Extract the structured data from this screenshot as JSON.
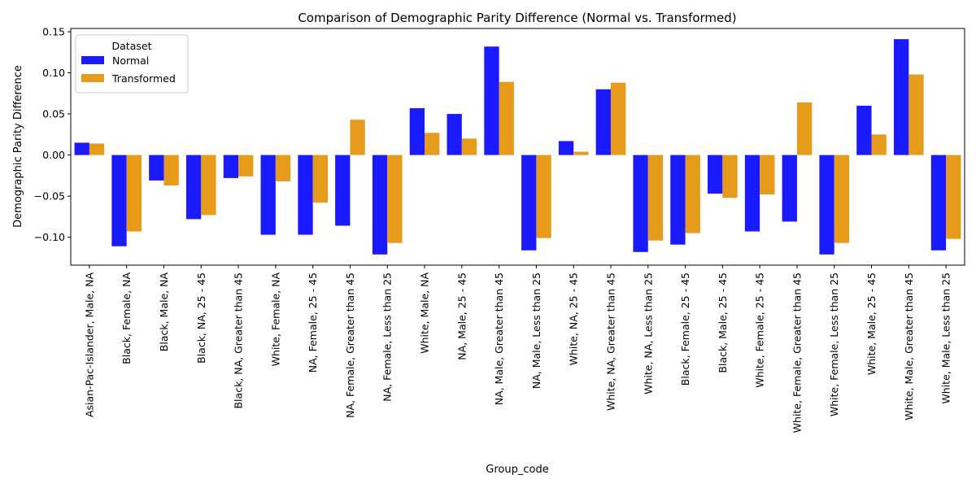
{
  "chart_data": {
    "type": "bar",
    "title": "Comparison of Demographic Parity Difference (Normal vs. Transformed)",
    "xlabel": "Group_code",
    "ylabel": "Demographic Parity Difference",
    "ylim": [
      -0.134,
      0.154
    ],
    "yticks": [
      -0.1,
      -0.05,
      0.0,
      0.05,
      0.1,
      0.15
    ],
    "ytick_labels": [
      "−0.10",
      "−0.05",
      "0.00",
      "0.05",
      "0.10",
      "0.15"
    ],
    "grid": false,
    "legend": {
      "title": "Dataset",
      "placement": "top-left"
    },
    "categories": [
      "Asian-Pac-Islander,  Male, NA",
      "Black,  Female, NA",
      "Black,  Male, NA",
      "Black, NA, 25 - 45",
      "Black, NA, Greater than 45",
      "White,  Female, NA",
      "NA,  Female, 25 - 45",
      "NA,  Female, Greater than 45",
      "NA,  Female, Less than 25",
      "White,  Male, NA",
      "NA,  Male, 25 - 45",
      "NA,  Male, Greater than 45",
      "NA,  Male, Less than 25",
      "White, NA, 25 - 45",
      "White, NA, Greater than 45",
      "White, NA, Less than 25",
      "Black,  Female, 25 - 45",
      "Black,  Male, 25 - 45",
      "White,  Female, 25 - 45",
      "White,  Female, Greater than 45",
      "White,  Female, Less than 25",
      "White,  Male, 25 - 45",
      "White,  Male, Greater than 45",
      "White,  Male, Less than 25"
    ],
    "series": [
      {
        "name": "Normal",
        "color": "#1a1aff",
        "values": [
          0.015,
          -0.111,
          -0.031,
          -0.078,
          -0.028,
          -0.097,
          -0.097,
          -0.086,
          -0.121,
          0.057,
          0.05,
          0.132,
          -0.116,
          0.017,
          0.08,
          -0.118,
          -0.109,
          -0.047,
          -0.093,
          -0.081,
          -0.121,
          0.06,
          0.141,
          -0.116
        ]
      },
      {
        "name": "Transformed",
        "color": "#e69b1a",
        "values": [
          0.014,
          -0.093,
          -0.037,
          -0.073,
          -0.026,
          -0.032,
          -0.058,
          0.043,
          -0.107,
          0.027,
          0.02,
          0.089,
          -0.101,
          0.004,
          0.088,
          -0.104,
          -0.095,
          -0.052,
          -0.048,
          0.064,
          -0.107,
          0.025,
          0.098,
          -0.102
        ]
      }
    ]
  }
}
